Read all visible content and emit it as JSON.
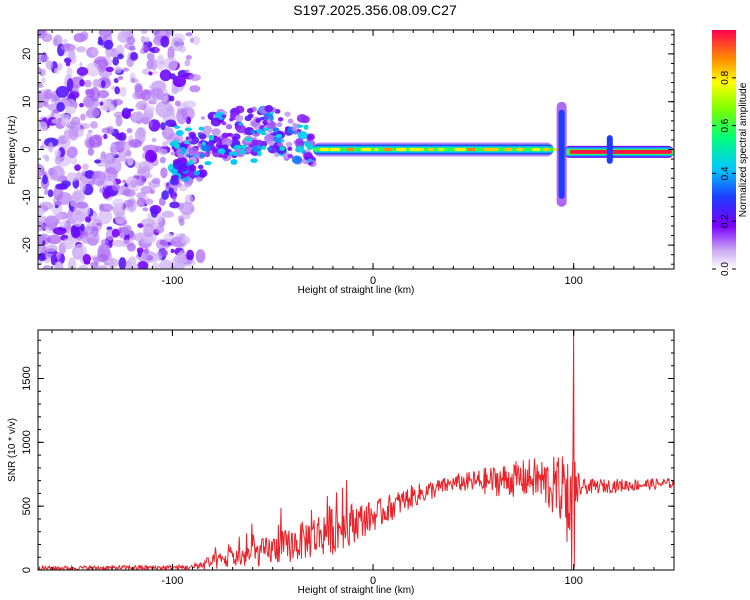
{
  "title": "S197.2025.356.08.09.C27",
  "chart_data": [
    {
      "type": "heatmap",
      "name": "spectrogram",
      "xlabel": "Height of straight line (km)",
      "ylabel": "Frequency (Hz)",
      "xlim": [
        -167,
        150
      ],
      "ylim": [
        -25,
        25
      ],
      "xticks": [
        -100,
        0,
        100
      ],
      "yticks": [
        -20,
        -10,
        0,
        10,
        20
      ],
      "colorbar": {
        "label": "Normalized spectral amplitude",
        "range": [
          0,
          1
        ],
        "ticks": [
          "0.0",
          "0.2",
          "0.4",
          "0.6",
          "0.8"
        ],
        "tick_values": [
          0.0,
          0.2,
          0.4,
          0.6,
          0.8
        ]
      },
      "features": [
        {
          "region": "noise",
          "x_range": [
            -167,
            -90
          ],
          "freq_range": [
            -25,
            25
          ],
          "amplitude": 0.08
        },
        {
          "region": "scatter",
          "x_range": [
            -100,
            -30
          ],
          "freq_range": [
            -6,
            8
          ],
          "amplitude": 0.3
        },
        {
          "region": "tone",
          "x_range": [
            -30,
            90
          ],
          "freq": 0,
          "amplitude": 0.65
        },
        {
          "region": "spike",
          "x": 94,
          "freq_range": [
            -12,
            10
          ],
          "amplitude": 0.3
        },
        {
          "region": "tone",
          "x_range": [
            95,
            150
          ],
          "freq": -0.5,
          "amplitude": 0.95
        }
      ]
    },
    {
      "type": "line",
      "name": "snr",
      "xlabel": "Height of straight line (km)",
      "ylabel": "SNR (10 * v/v)",
      "xlim": [
        -167,
        150
      ],
      "ylim": [
        0,
        1880
      ],
      "xticks": [
        -100,
        0,
        100
      ],
      "yticks": [
        0,
        500,
        1000,
        1500
      ],
      "color": "#e8232a",
      "envelope": [
        {
          "x": -167,
          "base": 15,
          "jitter": 15
        },
        {
          "x": -90,
          "base": 20,
          "jitter": 20
        },
        {
          "x": -80,
          "base": 60,
          "jitter": 60
        },
        {
          "x": -60,
          "base": 120,
          "jitter": 100
        },
        {
          "x": -40,
          "base": 200,
          "jitter": 140
        },
        {
          "x": -20,
          "base": 320,
          "jitter": 200
        },
        {
          "x": 0,
          "base": 420,
          "jitter": 120
        },
        {
          "x": 20,
          "base": 580,
          "jitter": 90
        },
        {
          "x": 40,
          "base": 680,
          "jitter": 60
        },
        {
          "x": 60,
          "base": 700,
          "jitter": 120
        },
        {
          "x": 80,
          "base": 720,
          "jitter": 160
        },
        {
          "x": 98,
          "base": 600,
          "jitter": 300
        },
        {
          "x": 104,
          "base": 650,
          "jitter": 60
        },
        {
          "x": 150,
          "base": 680,
          "jitter": 40
        }
      ],
      "peak": {
        "x": 100,
        "y": 1880
      }
    }
  ]
}
